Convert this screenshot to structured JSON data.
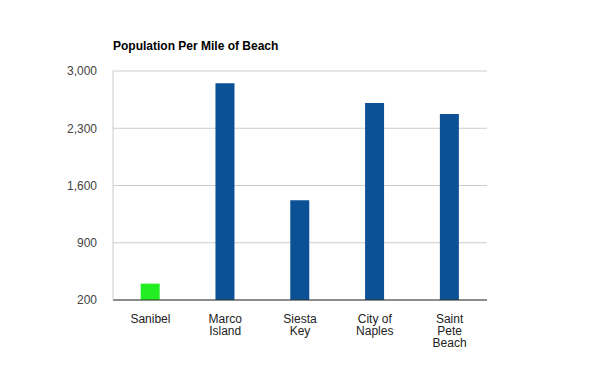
{
  "chart_data": {
    "type": "bar",
    "title": "Population Per Mile of Beach",
    "categories": [
      "Sanibel",
      "Marco Island",
      "Siesta Key",
      "City of Naples",
      "Saint Pete Beach"
    ],
    "values": [
      400,
      2850,
      1420,
      2610,
      2475
    ],
    "colors": [
      "#22ee22",
      "#0c5096",
      "#0c5096",
      "#0c5096",
      "#0c5096"
    ],
    "ylim": [
      200,
      3000
    ],
    "yticks": [
      200,
      900,
      1600,
      2300,
      3000
    ],
    "grid": true
  }
}
